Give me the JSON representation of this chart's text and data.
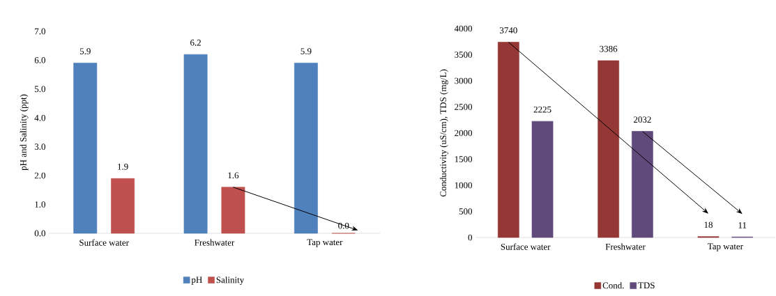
{
  "chart_data": [
    {
      "type": "bar",
      "ylabel": "pH and Salinity (ppt)",
      "categories": [
        "Surface water",
        "Freshwater",
        "Tap water"
      ],
      "series": [
        {
          "name": "pH",
          "color": "#4f81bd",
          "values": [
            5.9,
            6.2,
            5.9
          ],
          "value_labels": [
            "5.9",
            "6.2",
            "5.9"
          ]
        },
        {
          "name": "Salinity",
          "color": "#c0504d",
          "values": [
            1.9,
            1.6,
            0.0
          ],
          "value_labels": [
            "1.9",
            "1.6",
            "0.0"
          ]
        }
      ],
      "ylim": [
        0,
        7
      ],
      "yticks": [
        {
          "value": 0,
          "label": "0.0"
        },
        {
          "value": 1,
          "label": "1.0"
        },
        {
          "value": 2,
          "label": "2.0"
        },
        {
          "value": 3,
          "label": "3.0"
        },
        {
          "value": 4,
          "label": "4.0"
        },
        {
          "value": 5,
          "label": "5.0"
        },
        {
          "value": 6,
          "label": "6.0"
        },
        {
          "value": 7,
          "label": "7.0"
        }
      ],
      "legend": "bottom",
      "grid": false
    },
    {
      "type": "bar",
      "ylabel": "Conductivity (uS/cm), TDS (mg/L)",
      "categories": [
        "Surface water",
        "Freshwater",
        "Tap water"
      ],
      "series": [
        {
          "name": "Cond.",
          "color": "#953735",
          "values": [
            3740,
            3386,
            18
          ]
        },
        {
          "name": "TDS",
          "color": "#604a7b",
          "values": [
            2225,
            2032,
            11
          ]
        }
      ],
      "ylim": [
        0,
        4000
      ],
      "yticks": [
        0,
        500,
        1000,
        1500,
        2000,
        2500,
        3000,
        3500,
        4000
      ],
      "data_labels": true,
      "legend": "bottom",
      "grid": false
    }
  ]
}
